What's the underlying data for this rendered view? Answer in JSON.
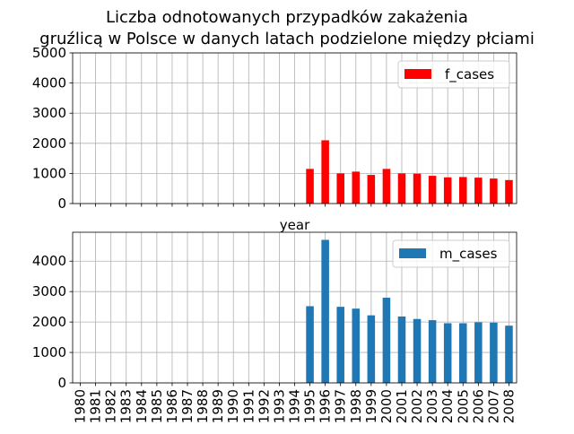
{
  "title_line1": "Liczba odnotowanych przypadków zakażenia",
  "title_line2": "gruźlicą w Polsce w danych latach podzielone między płciami",
  "chart_data": [
    {
      "type": "bar",
      "xlabel": "year",
      "ylim": [
        0,
        5000
      ],
      "yticks": [
        0,
        1000,
        2000,
        3000,
        4000,
        5000
      ],
      "grid": true,
      "legend_position": "top-right",
      "show_x_ticklabels": false,
      "categories": [
        "1980",
        "1981",
        "1982",
        "1983",
        "1984",
        "1985",
        "1986",
        "1987",
        "1988",
        "1989",
        "1990",
        "1991",
        "1992",
        "1993",
        "1994",
        "1995",
        "1996",
        "1997",
        "1998",
        "1999",
        "2000",
        "2001",
        "2002",
        "2003",
        "2004",
        "2005",
        "2006",
        "2007",
        "2008"
      ],
      "series": [
        {
          "name": "f_cases",
          "color": "#ff0000",
          "values": [
            0,
            0,
            0,
            0,
            0,
            0,
            0,
            0,
            0,
            0,
            0,
            0,
            0,
            0,
            0,
            1150,
            2100,
            1000,
            1060,
            950,
            1150,
            1000,
            990,
            920,
            870,
            880,
            860,
            830,
            780
          ]
        }
      ]
    },
    {
      "type": "bar",
      "xlabel": "",
      "ylim": [
        0,
        4950
      ],
      "yticks": [
        0,
        1000,
        2000,
        3000,
        4000
      ],
      "grid": true,
      "legend_position": "top-right",
      "show_x_ticklabels": true,
      "categories": [
        "1980",
        "1981",
        "1982",
        "1983",
        "1984",
        "1985",
        "1986",
        "1987",
        "1988",
        "1989",
        "1990",
        "1991",
        "1992",
        "1993",
        "1994",
        "1995",
        "1996",
        "1997",
        "1998",
        "1999",
        "2000",
        "2001",
        "2002",
        "2003",
        "2004",
        "2005",
        "2006",
        "2007",
        "2008"
      ],
      "series": [
        {
          "name": "m_cases",
          "color": "#1f77b4",
          "values": [
            0,
            0,
            0,
            0,
            0,
            0,
            0,
            0,
            0,
            0,
            0,
            0,
            0,
            0,
            0,
            2520,
            4700,
            2500,
            2440,
            2220,
            2800,
            2180,
            2100,
            2060,
            1960,
            1960,
            1990,
            1980,
            1880
          ]
        }
      ]
    }
  ]
}
